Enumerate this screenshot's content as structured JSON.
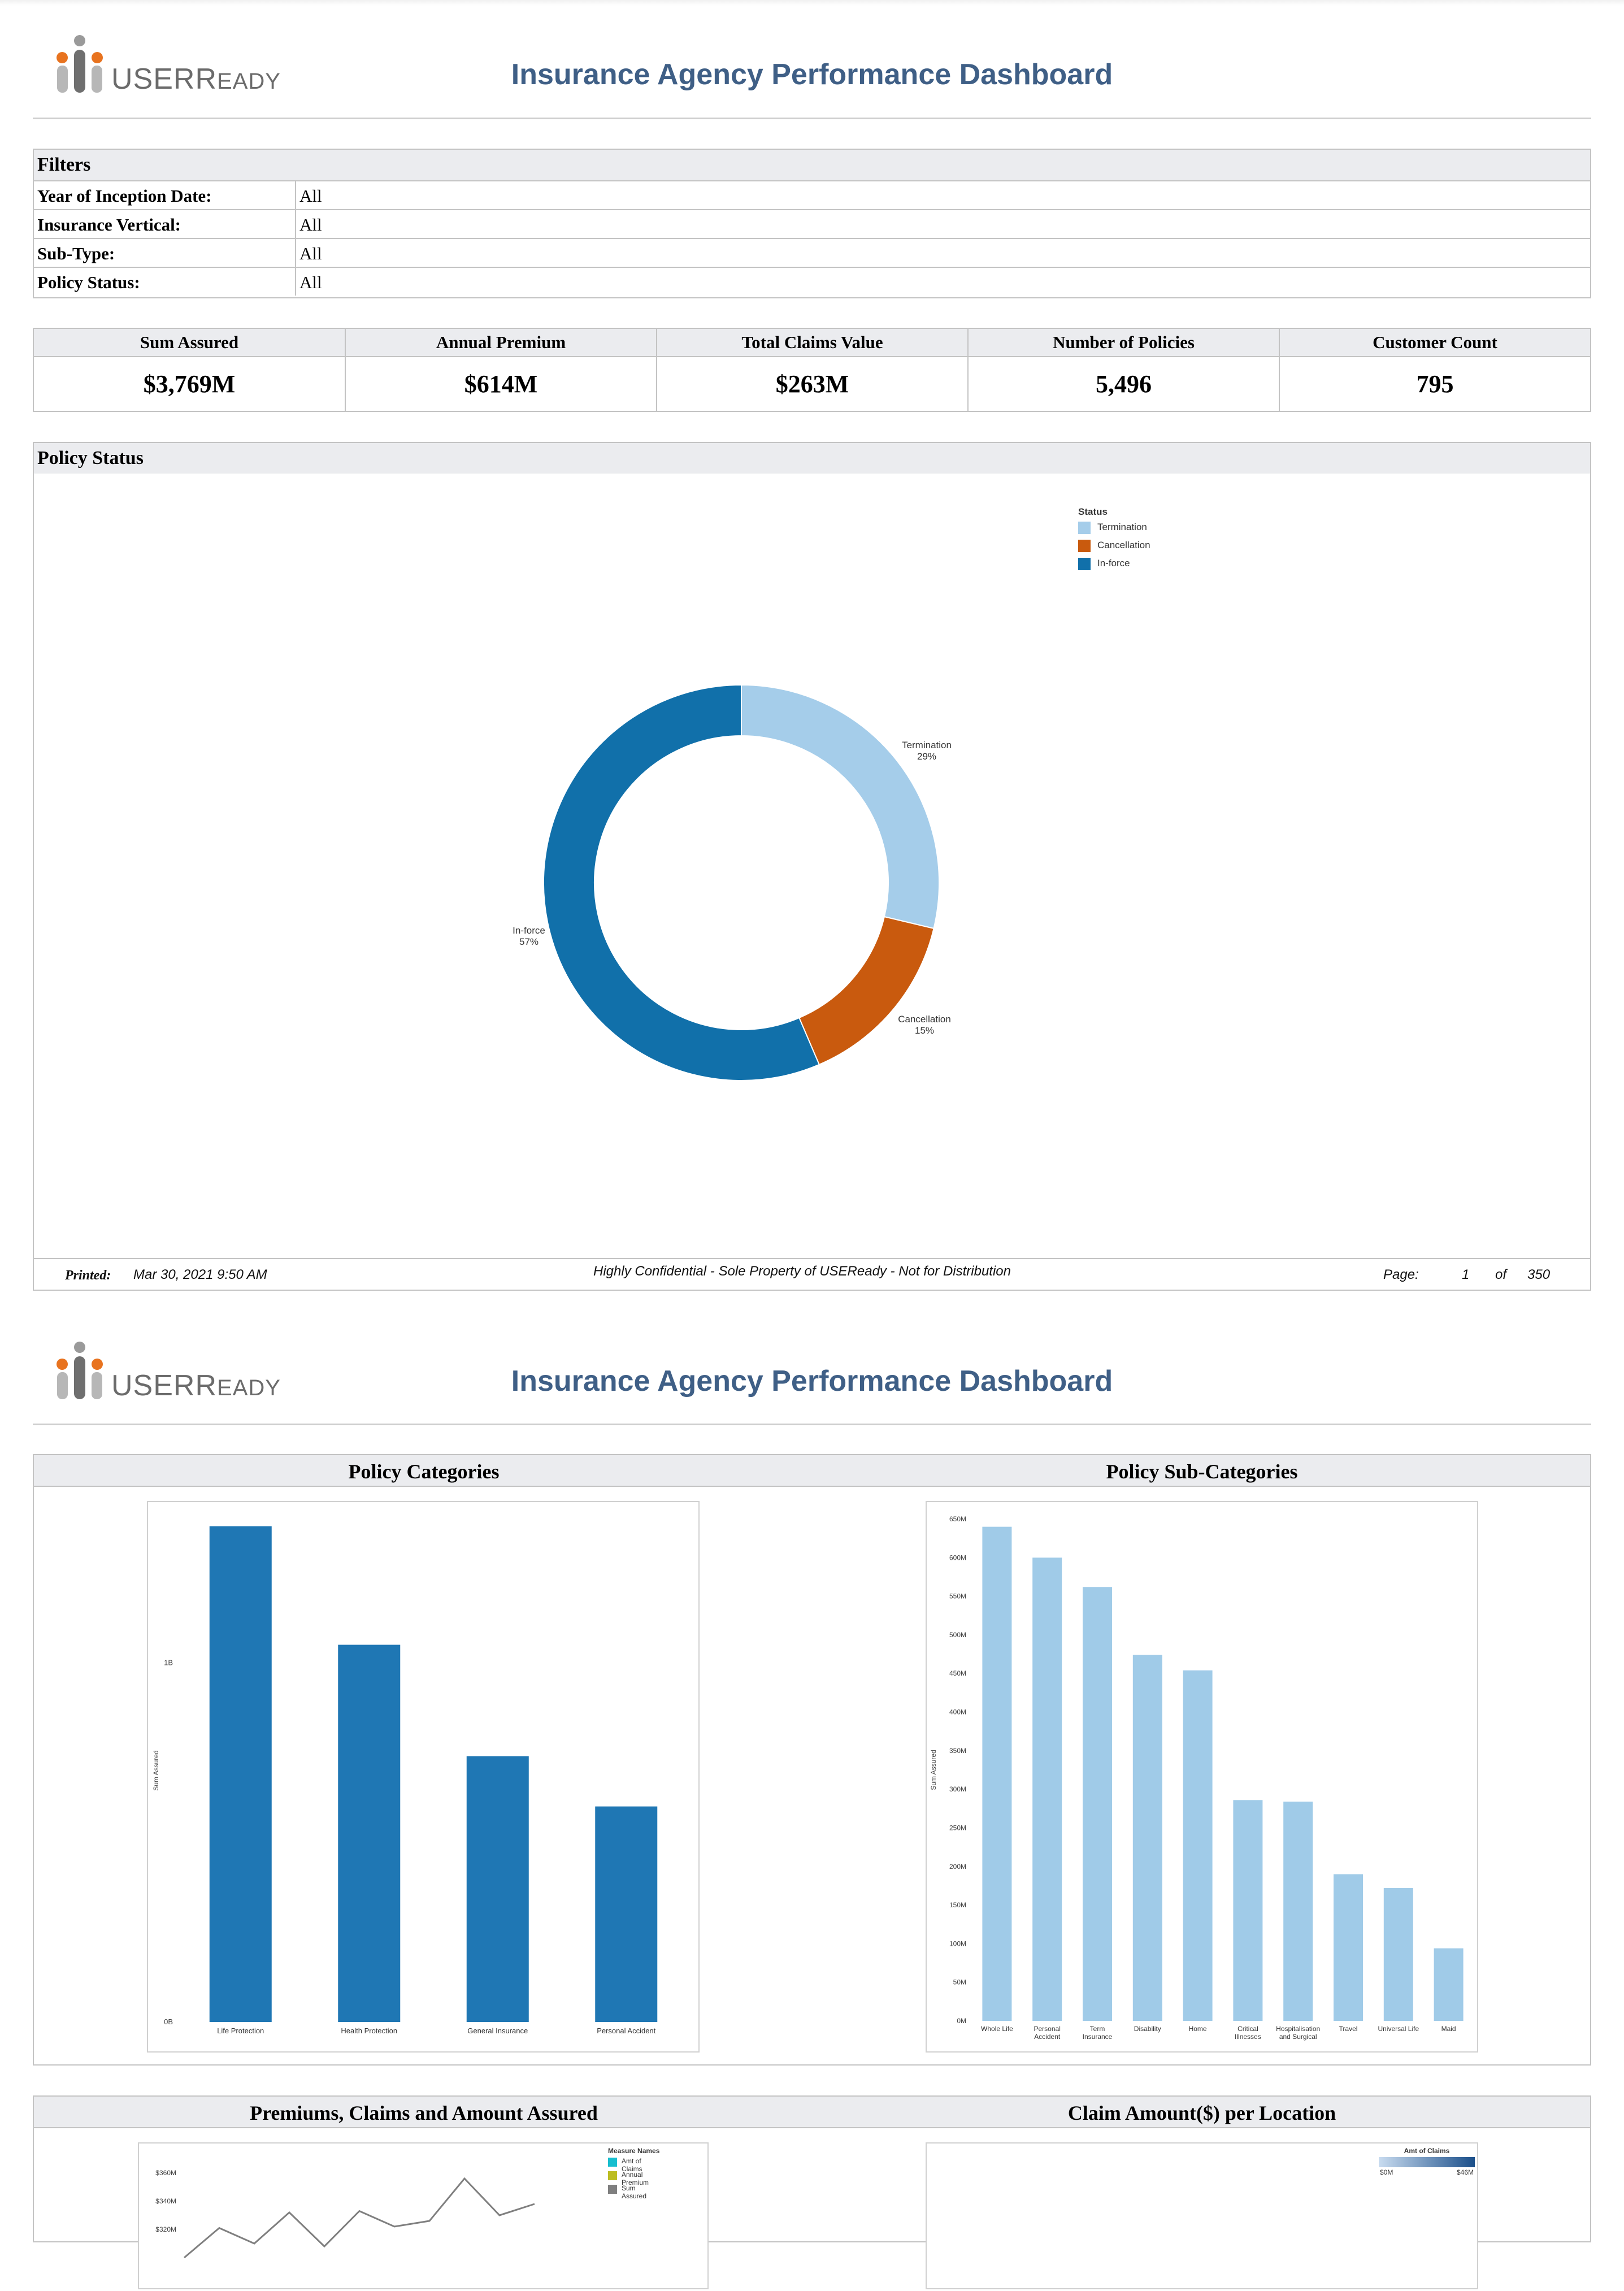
{
  "header": {
    "logo_text": "USEReady",
    "logo_main": "USER",
    "logo_tail": "EADY",
    "logo_tail_initial": "R",
    "title": "Insurance Agency Performance Dashboard"
  },
  "filters": {
    "heading": "Filters",
    "rows": [
      {
        "label": "Year of Inception Date:",
        "value": "All"
      },
      {
        "label": "Insurance Vertical:",
        "value": "All"
      },
      {
        "label": "Sub-Type:",
        "value": "All"
      },
      {
        "label": "Policy Status:",
        "value": "All"
      }
    ]
  },
  "kpis": [
    {
      "label": "Sum Assured",
      "value": "$3,769M"
    },
    {
      "label": "Annual Premium",
      "value": "$614M"
    },
    {
      "label": "Total Claims Value",
      "value": "$263M"
    },
    {
      "label": "Number of Policies",
      "value": "5,496"
    },
    {
      "label": "Customer Count",
      "value": "795"
    }
  ],
  "policy_status": {
    "heading": "Policy Status",
    "legend_title": "Status"
  },
  "footer": {
    "printed_label": "Printed:",
    "printed_value": "Mar 30, 2021 9:50 AM",
    "confidential": "Highly Confidential - Sole Property of USEReady - Not for Distribution",
    "page_label": "Page:",
    "page_current": "1",
    "page_of": "of",
    "page_total": "350"
  },
  "colors": {
    "termination": "#a5cdea",
    "cancellation": "#c95a0e",
    "inforce": "#1170aa",
    "category_bar": "#1f77b4",
    "subcategory_bar": "#a0cbe8",
    "title_blue": "#3f5f86",
    "logo_orange": "#e8731f",
    "logo_grey": "#9a9a9a"
  },
  "panels": {
    "categories_title": "Policy Categories",
    "subcategories_title": "Policy Sub-Categories",
    "premiums_title": "Premiums, Claims and Amount Assured",
    "location_title": "Claim Amount($) per Location"
  },
  "chart_data": [
    {
      "type": "pie",
      "legend_title": "Status",
      "labels": [
        "Termination",
        "Cancellation",
        "In-force"
      ],
      "values": [
        29,
        15,
        57
      ],
      "value_labels": [
        "29%",
        "15%",
        "57%"
      ],
      "donut": true,
      "legend_position": "top-right"
    },
    {
      "type": "bar",
      "title": "Policy Categories",
      "categories": [
        "Life Protection",
        "Health Protection",
        "General Insurance",
        "Personal Accident"
      ],
      "values": [
        1380000000,
        1050000000,
        740000000,
        600000000
      ],
      "ylabel": "Sum Assured",
      "yticks": [
        "0B",
        "1B"
      ],
      "ylim": [
        0,
        1400000000
      ]
    },
    {
      "type": "bar",
      "title": "Policy Sub-Categories",
      "categories": [
        "Whole Life",
        "Personal Accident",
        "Term Insurance",
        "Disability",
        "Home",
        "Critical Illnesses",
        "Hospitalisation and Surgical",
        "Travel",
        "Universal Life",
        "Maid"
      ],
      "category_lines": [
        [
          "Whole Life"
        ],
        [
          "Personal",
          "Accident"
        ],
        [
          "Term",
          "Insurance"
        ],
        [
          "Disability"
        ],
        [
          "Home"
        ],
        [
          "Critical",
          "Illnesses"
        ],
        [
          "Hospitalisation",
          "and Surgical"
        ],
        [
          "Travel"
        ],
        [
          "Universal Life"
        ],
        [
          "Maid"
        ]
      ],
      "values": [
        640,
        600,
        562,
        474,
        454,
        286,
        284,
        190,
        172,
        94
      ],
      "ylabel": "Sum Assured",
      "yticks": [
        "0M",
        "50M",
        "100M",
        "150M",
        "200M",
        "250M",
        "300M",
        "350M",
        "400M",
        "450M",
        "500M",
        "550M",
        "600M",
        "650M"
      ],
      "ylim": [
        0,
        650
      ]
    },
    {
      "type": "line",
      "title": "Premiums, Claims and Amount Assured",
      "legend_title": "Measure Names",
      "series": [
        {
          "name": "Amt of Claims",
          "color": "#17becf"
        },
        {
          "name": "Annual Premium",
          "color": "#bcbd22"
        },
        {
          "name": "Sum Assured",
          "color": "#7f7f7f",
          "values": [
            300,
            321,
            310,
            332,
            308,
            333,
            322,
            326,
            356,
            330,
            338
          ]
        }
      ],
      "yticks": [
        "$320M",
        "$340M",
        "$360M"
      ]
    },
    {
      "type": "heatmap",
      "title": "Claim Amount($) per Location",
      "legend_title": "Amt of Claims",
      "range_labels": [
        "$0M",
        "$46M"
      ]
    }
  ]
}
